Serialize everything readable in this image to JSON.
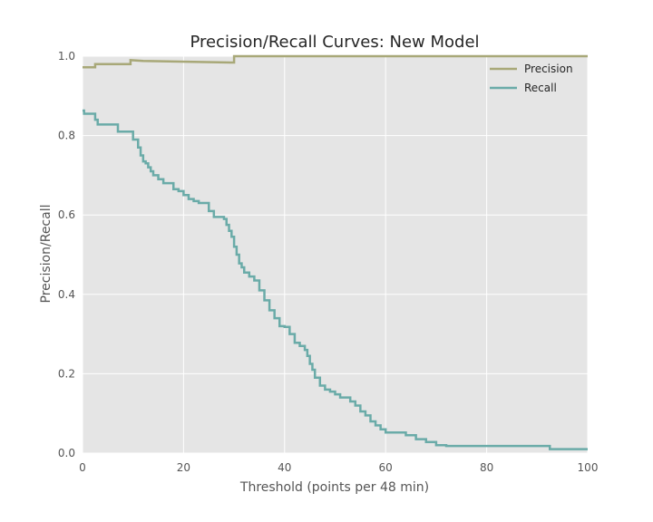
{
  "chart_data": {
    "type": "line",
    "title": "Precision/Recall Curves: New Model",
    "xlabel": "Threshold (points per 48 min)",
    "ylabel": "Precision/Recall",
    "xlim": [
      0,
      100
    ],
    "ylim": [
      0,
      1.0
    ],
    "x_ticks": [
      "0",
      "20",
      "40",
      "60",
      "80",
      "100"
    ],
    "y_ticks": [
      "0.0",
      "0.2",
      "0.4",
      "0.6",
      "0.8",
      "1.0"
    ],
    "grid": true,
    "legend_position": "top-right",
    "series": [
      {
        "name": "Precision",
        "color": "#a8a878",
        "x": [
          0,
          2.5,
          2.5,
          9.5,
          9.5,
          12,
          30,
          30,
          100
        ],
        "y": [
          0.972,
          0.972,
          0.98,
          0.98,
          0.99,
          0.988,
          0.984,
          1.0,
          1.0
        ]
      },
      {
        "name": "Recall",
        "color": "#6aaba8",
        "x": [
          0,
          0.3,
          0.3,
          2.5,
          2.5,
          3,
          3,
          7,
          7,
          10,
          10,
          11,
          11,
          11.5,
          11.5,
          12,
          12,
          12.5,
          12.5,
          13,
          13,
          13.5,
          13.5,
          14,
          14,
          15,
          15,
          16,
          16,
          18,
          18,
          19,
          19,
          20,
          20,
          21,
          21,
          22,
          22,
          23,
          23,
          25,
          25,
          26,
          26,
          28,
          28,
          28.5,
          28.5,
          29,
          29,
          29.5,
          29.5,
          30,
          30,
          30.5,
          30.5,
          31,
          31,
          31.5,
          31.5,
          32,
          32,
          33,
          33,
          34,
          34,
          35,
          35,
          36,
          36,
          37,
          37,
          38,
          38,
          39,
          39,
          40,
          40,
          41,
          41,
          42,
          42,
          43,
          43,
          44,
          44,
          44.5,
          44.5,
          45,
          45,
          45.5,
          45.5,
          46,
          46,
          47,
          47,
          48,
          48,
          49,
          49,
          50,
          50,
          51,
          51,
          53,
          53,
          54,
          54,
          55,
          55,
          56,
          56,
          57,
          57,
          58,
          58,
          59,
          59,
          60,
          60,
          64,
          64,
          66,
          66,
          68,
          68,
          70,
          70,
          72,
          72,
          92.5,
          92.5,
          100
        ],
        "y": [
          0.863,
          0.863,
          0.855,
          0.855,
          0.84,
          0.84,
          0.828,
          0.828,
          0.81,
          0.81,
          0.79,
          0.79,
          0.77,
          0.77,
          0.75,
          0.75,
          0.735,
          0.735,
          0.73,
          0.73,
          0.72,
          0.72,
          0.71,
          0.71,
          0.7,
          0.7,
          0.69,
          0.69,
          0.68,
          0.68,
          0.665,
          0.665,
          0.66,
          0.66,
          0.65,
          0.65,
          0.64,
          0.64,
          0.635,
          0.635,
          0.63,
          0.63,
          0.61,
          0.61,
          0.595,
          0.595,
          0.59,
          0.59,
          0.575,
          0.575,
          0.56,
          0.56,
          0.545,
          0.545,
          0.52,
          0.52,
          0.5,
          0.5,
          0.478,
          0.478,
          0.468,
          0.468,
          0.455,
          0.455,
          0.445,
          0.445,
          0.435,
          0.435,
          0.41,
          0.41,
          0.385,
          0.385,
          0.36,
          0.36,
          0.34,
          0.34,
          0.32,
          0.32,
          0.318,
          0.318,
          0.3,
          0.3,
          0.278,
          0.278,
          0.27,
          0.27,
          0.26,
          0.26,
          0.245,
          0.245,
          0.225,
          0.225,
          0.21,
          0.21,
          0.19,
          0.19,
          0.17,
          0.17,
          0.16,
          0.16,
          0.155,
          0.155,
          0.148,
          0.148,
          0.14,
          0.14,
          0.13,
          0.13,
          0.12,
          0.12,
          0.105,
          0.105,
          0.095,
          0.095,
          0.08,
          0.08,
          0.07,
          0.07,
          0.06,
          0.06,
          0.052,
          0.052,
          0.045,
          0.045,
          0.035,
          0.035,
          0.028,
          0.028,
          0.02,
          0.02,
          0.018,
          0.018,
          0.01,
          0.01
        ]
      }
    ]
  }
}
